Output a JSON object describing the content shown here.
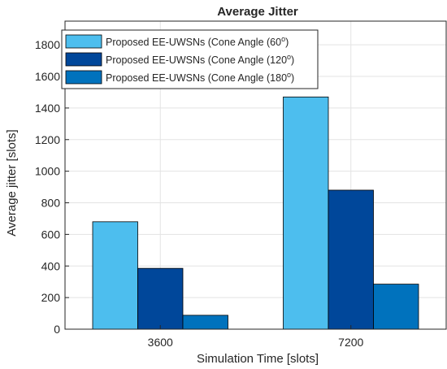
{
  "chart_data": {
    "type": "bar",
    "title": "Average Jitter",
    "xlabel": "Simulation Time [slots]",
    "ylabel": "Average jitter [slots]",
    "categories": [
      "3600",
      "7200"
    ],
    "ylim": [
      0,
      1950
    ],
    "yticks": [
      0,
      200,
      400,
      600,
      800,
      1000,
      1200,
      1400,
      1600,
      1800
    ],
    "grid": true,
    "legend_position": "top-left",
    "series": [
      {
        "name": "Proposed EE-UWSNs (Cone Angle (60",
        "superscript": "o",
        "name_suffix": ")",
        "color": "#4DBEEE",
        "values": [
          680,
          1470
        ]
      },
      {
        "name": "Proposed EE-UWSNs (Cone Angle (120",
        "superscript": "o",
        "name_suffix": ")",
        "color": "#00479A",
        "values": [
          385,
          880
        ]
      },
      {
        "name": "Proposed EE-UWSNs (Cone Angle (180",
        "superscript": "o",
        "name_suffix": ")",
        "color": "#0072BD",
        "values": [
          88,
          285
        ]
      }
    ]
  }
}
